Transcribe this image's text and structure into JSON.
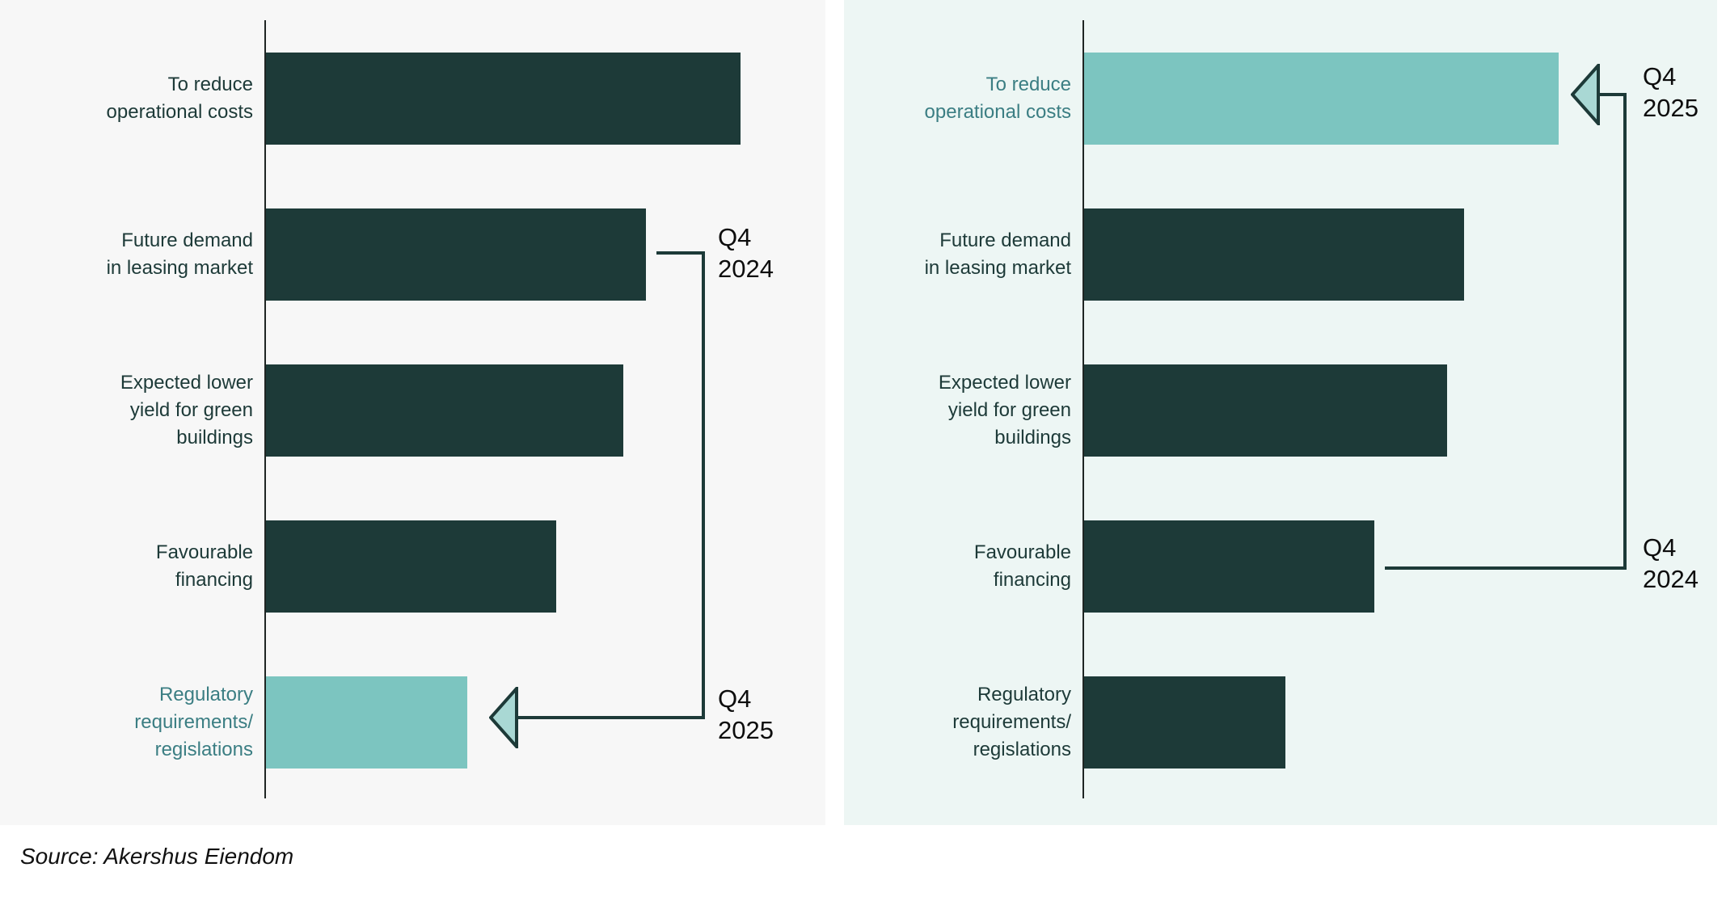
{
  "source": {
    "label": "Source: Akershus Eiendom"
  },
  "colors": {
    "bar_dark": "#1d3a38",
    "bar_highlight": "#7cc5c0",
    "arrowhead_fill": "#a9d8d4",
    "connector": "#1d3a38",
    "label_dark": "#1d3a38",
    "label_highlight": "#3b7e83",
    "panel_left_bg": "#f7f7f7",
    "panel_right_bg": "#edf6f4"
  },
  "chart_data": [
    {
      "type": "bar",
      "orientation": "horizontal",
      "panel": "left",
      "title": "",
      "categories": [
        "To reduce\noperational costs",
        "Future demand\nin leasing market",
        "Expected lower\nyield for green\nbuildings",
        "Favourable\nfinancing",
        "Regulatory\nrequirements/\nregislations"
      ],
      "values": [
        85,
        68,
        64,
        52,
        36
      ],
      "xlim": [
        0,
        100
      ],
      "grid": false,
      "highlight_index": 4,
      "annotations": [
        {
          "label": "Q4 2024",
          "points_to": "Future demand in leasing market"
        },
        {
          "label": "Q4 2025",
          "points_to": "Regulatory requirements/regislations",
          "arrow": true
        }
      ]
    },
    {
      "type": "bar",
      "orientation": "horizontal",
      "panel": "right",
      "title": "",
      "categories": [
        "To reduce\noperational costs",
        "Future demand\nin leasing market",
        "Expected lower\nyield for green\nbuildings",
        "Favourable\nfinancing",
        "Regulatory\nrequirements/\nregislations"
      ],
      "values": [
        85,
        68,
        65,
        52,
        36
      ],
      "xlim": [
        0,
        100
      ],
      "grid": false,
      "highlight_index": 0,
      "annotations": [
        {
          "label": "Q4 2025",
          "points_to": "To reduce operational costs",
          "arrow": true
        },
        {
          "label": "Q4 2024",
          "points_to": "Favourable financing"
        }
      ]
    }
  ]
}
